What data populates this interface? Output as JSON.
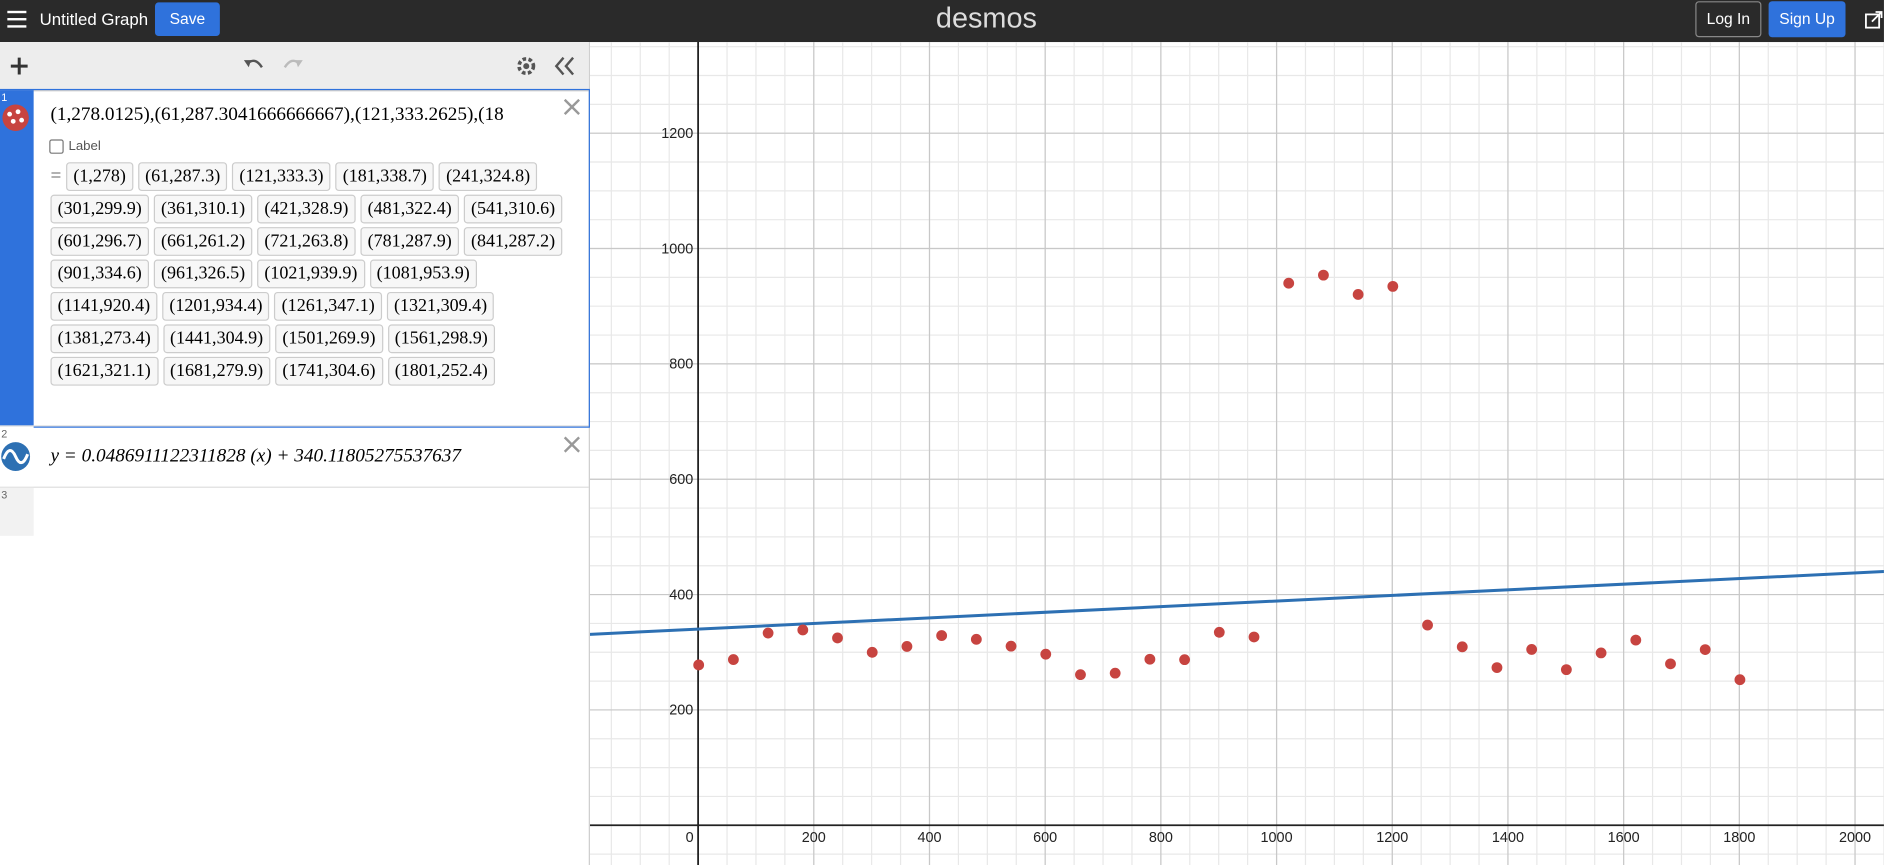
{
  "header": {
    "title": "Untitled Graph",
    "save": "Save",
    "logo": "desmos",
    "login": "Log In",
    "signup": "Sign Up"
  },
  "expressions": [
    {
      "index": "1",
      "text": "(1,278.0125),(61,287.3041666666667),(121,333.2625),(18",
      "label_option": "Label",
      "equals": "=",
      "results": [
        "(1,278)",
        "(61,287.3)",
        "(121,333.3)",
        "(181,338.7)",
        "(241,324.8)",
        "(301,299.9)",
        "(361,310.1)",
        "(421,328.9)",
        "(481,322.4)",
        "(541,310.6)",
        "(601,296.7)",
        "(661,261.2)",
        "(721,263.8)",
        "(781,287.9)",
        "(841,287.2)",
        "(901,334.6)",
        "(961,326.5)",
        "(1021,939.9)",
        "(1081,953.9)",
        "(1141,920.4)",
        "(1201,934.4)",
        "(1261,347.1)",
        "(1321,309.4)",
        "(1381,273.4)",
        "(1441,304.9)",
        "(1501,269.9)",
        "(1561,298.9)",
        "(1621,321.1)",
        "(1681,279.9)",
        "(1741,304.6)",
        "(1801,252.4)"
      ]
    },
    {
      "index": "2",
      "text": "y = 0.0486911122311828 (x) + 340.11805275537637"
    },
    {
      "index": "3"
    }
  ],
  "graph": {
    "type": "scatter",
    "x": [
      1,
      61,
      121,
      181,
      241,
      301,
      361,
      421,
      481,
      541,
      601,
      661,
      721,
      781,
      841,
      901,
      961,
      1021,
      1081,
      1141,
      1201,
      1261,
      1321,
      1381,
      1441,
      1501,
      1561,
      1621,
      1681,
      1741,
      1801
    ],
    "values": [
      278,
      287.3,
      333.3,
      338.7,
      324.8,
      299.9,
      310.1,
      328.9,
      322.4,
      310.6,
      296.7,
      261.2,
      263.8,
      287.9,
      287.2,
      334.6,
      326.5,
      939.9,
      953.9,
      920.4,
      934.4,
      347.1,
      309.4,
      273.4,
      304.9,
      269.9,
      298.9,
      321.1,
      279.9,
      304.6,
      252.4
    ],
    "color": "#c74440",
    "line": {
      "slope": 0.0486911122311828,
      "intercept": 340.11805275537637,
      "color": "#2d70b3"
    },
    "xlim": [
      -187,
      2050
    ],
    "ylim": [
      -69,
      1358
    ],
    "xticks": [
      0,
      200,
      400,
      600,
      800,
      1000,
      1200,
      1400,
      1600,
      1800,
      2000
    ],
    "yticks": [
      200,
      400,
      600,
      800,
      1000,
      1200
    ],
    "grid": true
  }
}
